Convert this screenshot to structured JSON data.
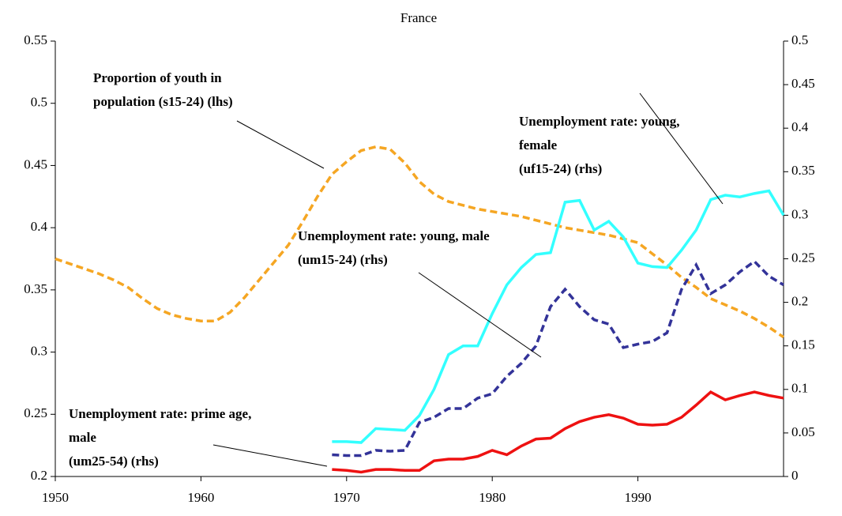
{
  "chart_data": {
    "type": "line",
    "title": "France",
    "xlim": [
      1950,
      2000
    ],
    "xticks": [
      1950,
      1960,
      1970,
      1980,
      1990
    ],
    "ylim": [
      0.2,
      0.55
    ],
    "yticks": [
      0.2,
      0.25,
      0.3,
      0.35,
      0.4,
      0.45,
      0.5,
      0.55
    ],
    "y2lim": [
      0,
      0.5
    ],
    "y2ticks": [
      0,
      0.05,
      0.1,
      0.15,
      0.2,
      0.25,
      0.3,
      0.35,
      0.4,
      0.45,
      0.5
    ],
    "series": [
      {
        "label": [
          "Proportion of youth in",
          "population (s15-24) (lhs)"
        ],
        "color": "#f5a623",
        "dashed": true,
        "axis": "y",
        "x": [
          1950,
          1951,
          1952,
          1953,
          1954,
          1955,
          1956,
          1957,
          1958,
          1959,
          1960,
          1961,
          1962,
          1963,
          1964,
          1965,
          1966,
          1967,
          1968,
          1969,
          1970,
          1971,
          1972,
          1973,
          1974,
          1975,
          1976,
          1977,
          1978,
          1979,
          1980,
          1981,
          1982,
          1983,
          1984,
          1985,
          1986,
          1987,
          1988,
          1989,
          1990,
          1991,
          1992,
          1993,
          1994,
          1995,
          1996,
          1997,
          1998,
          1999,
          2000
        ],
        "values": [
          0.375,
          0.371,
          0.367,
          0.363,
          0.358,
          0.352,
          0.343,
          0.335,
          0.33,
          0.327,
          0.325,
          0.325,
          0.332,
          0.344,
          0.358,
          0.372,
          0.386,
          0.405,
          0.425,
          0.443,
          0.453,
          0.462,
          0.465,
          0.463,
          0.452,
          0.437,
          0.427,
          0.421,
          0.418,
          0.415,
          0.413,
          0.411,
          0.409,
          0.406,
          0.403,
          0.4,
          0.398,
          0.396,
          0.394,
          0.391,
          0.388,
          0.379,
          0.37,
          0.36,
          0.352,
          0.343,
          0.338,
          0.333,
          0.327,
          0.32,
          0.312
        ]
      },
      {
        "label": [
          "Unemployment rate: young,",
          "female",
          "(uf15-24) (rhs)"
        ],
        "color": "#33ffff",
        "dashed": false,
        "axis": "y2",
        "x": [
          1969,
          1970,
          1971,
          1972,
          1973,
          1974,
          1975,
          1976,
          1977,
          1978,
          1979,
          1980,
          1981,
          1982,
          1983,
          1984,
          1985,
          1986,
          1987,
          1988,
          1989,
          1990,
          1991,
          1992,
          1993,
          1994,
          1995,
          1996,
          1997,
          1998,
          1999,
          2000
        ],
        "values": [
          0.04,
          0.04,
          0.039,
          0.055,
          0.054,
          0.053,
          0.07,
          0.1,
          0.14,
          0.15,
          0.15,
          0.187,
          0.22,
          0.24,
          0.255,
          0.257,
          0.315,
          0.317,
          0.283,
          0.293,
          0.275,
          0.245,
          0.241,
          0.24,
          0.26,
          0.283,
          0.318,
          0.323,
          0.321,
          0.325,
          0.328,
          0.3
        ]
      },
      {
        "label": [
          "Unemployment rate: young, male",
          "(um15-24) (rhs)"
        ],
        "color": "#333399",
        "dashed": true,
        "axis": "y2",
        "x": [
          1969,
          1970,
          1971,
          1972,
          1973,
          1974,
          1975,
          1976,
          1977,
          1978,
          1979,
          1980,
          1981,
          1982,
          1983,
          1984,
          1985,
          1986,
          1987,
          1988,
          1989,
          1990,
          1991,
          1992,
          1993,
          1994,
          1995,
          1996,
          1997,
          1998,
          1999,
          2000
        ],
        "values": [
          0.025,
          0.024,
          0.024,
          0.03,
          0.029,
          0.03,
          0.062,
          0.068,
          0.078,
          0.078,
          0.09,
          0.095,
          0.115,
          0.13,
          0.15,
          0.195,
          0.215,
          0.195,
          0.18,
          0.175,
          0.148,
          0.152,
          0.155,
          0.165,
          0.215,
          0.243,
          0.21,
          0.22,
          0.235,
          0.247,
          0.23,
          0.22
        ]
      },
      {
        "label": [
          "Unemployment rate: prime age,",
          "male",
          "(um25-54) (rhs)"
        ],
        "color": "#ee1111",
        "dashed": false,
        "axis": "y2",
        "x": [
          1969,
          1970,
          1971,
          1972,
          1973,
          1974,
          1975,
          1976,
          1977,
          1978,
          1979,
          1980,
          1981,
          1982,
          1983,
          1984,
          1985,
          1986,
          1987,
          1988,
          1989,
          1990,
          1991,
          1992,
          1993,
          1994,
          1995,
          1996,
          1997,
          1998,
          1999,
          2000
        ],
        "values": [
          0.008,
          0.007,
          0.005,
          0.008,
          0.008,
          0.007,
          0.007,
          0.018,
          0.02,
          0.02,
          0.023,
          0.03,
          0.025,
          0.035,
          0.043,
          0.044,
          0.055,
          0.063,
          0.068,
          0.071,
          0.067,
          0.06,
          0.059,
          0.06,
          0.068,
          0.082,
          0.097,
          0.088,
          0.093,
          0.097,
          0.093,
          0.09
        ]
      }
    ]
  }
}
